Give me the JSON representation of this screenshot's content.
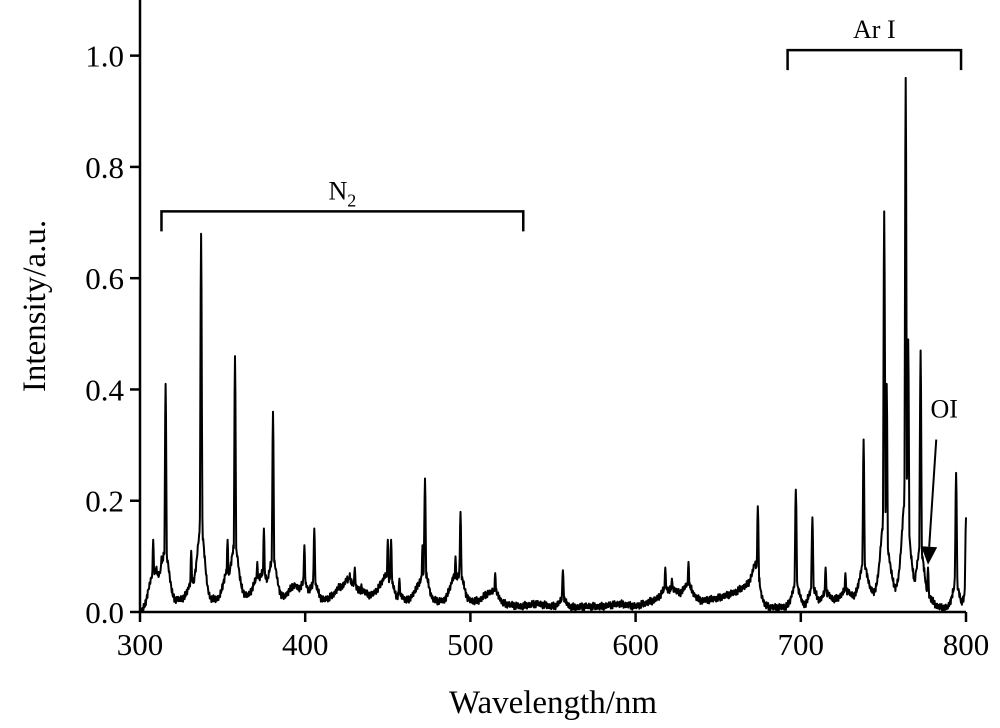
{
  "chart_data": {
    "type": "line",
    "xlabel": "Wavelength/nm",
    "ylabel": "Intensity/a.u.",
    "xlim": [
      300,
      800
    ],
    "ylim": [
      0,
      1.1
    ],
    "xticks": [
      300,
      400,
      500,
      600,
      700,
      800
    ],
    "yticks": [
      0.0,
      0.2,
      0.4,
      0.6,
      0.8,
      1.0
    ],
    "xtick_labels": [
      "300",
      "400",
      "500",
      "600",
      "700",
      "800"
    ],
    "ytick_labels": [
      "0.0",
      "0.2",
      "0.4",
      "0.6",
      "0.8",
      "1.0"
    ],
    "grid": false,
    "line_color": "#000000",
    "annotations": {
      "n2": {
        "label": "N",
        "subscript": "2",
        "x_start": 313,
        "x_end": 532,
        "y": 0.72
      },
      "ar": {
        "label": "Ar I",
        "x_start": 692,
        "x_end": 797,
        "y": 1.01
      },
      "oi": {
        "label": "OI",
        "arrow_from_x": 782,
        "arrow_from_y": 0.31,
        "arrow_to_x": 777,
        "arrow_to_y": 0.085
      }
    },
    "series": [
      {
        "baseline": [
          [
            300,
            0.0
          ],
          [
            303,
            0.01
          ],
          [
            305,
            0.03
          ],
          [
            310,
            0.06
          ],
          [
            316,
            0.03
          ],
          [
            320,
            0.02
          ],
          [
            328,
            0.025
          ],
          [
            333,
            0.04
          ],
          [
            340,
            0.02
          ],
          [
            348,
            0.025
          ],
          [
            352,
            0.05
          ],
          [
            360,
            0.03
          ],
          [
            366,
            0.03
          ],
          [
            372,
            0.05
          ],
          [
            380,
            0.03
          ],
          [
            386,
            0.025
          ],
          [
            392,
            0.04
          ],
          [
            400,
            0.03
          ],
          [
            410,
            0.02
          ],
          [
            418,
            0.03
          ],
          [
            425,
            0.05
          ],
          [
            432,
            0.03
          ],
          [
            440,
            0.03
          ],
          [
            448,
            0.05
          ],
          [
            455,
            0.02
          ],
          [
            462,
            0.02
          ],
          [
            468,
            0.04
          ],
          [
            476,
            0.02
          ],
          [
            484,
            0.02
          ],
          [
            490,
            0.05
          ],
          [
            498,
            0.02
          ],
          [
            505,
            0.02
          ],
          [
            512,
            0.03
          ],
          [
            520,
            0.015
          ],
          [
            530,
            0.01
          ],
          [
            540,
            0.015
          ],
          [
            550,
            0.01
          ],
          [
            560,
            0.008
          ],
          [
            570,
            0.01
          ],
          [
            580,
            0.01
          ],
          [
            590,
            0.015
          ],
          [
            600,
            0.01
          ],
          [
            610,
            0.02
          ],
          [
            620,
            0.03
          ],
          [
            630,
            0.035
          ],
          [
            640,
            0.02
          ],
          [
            650,
            0.025
          ],
          [
            660,
            0.035
          ],
          [
            668,
            0.05
          ],
          [
            672,
            0.065
          ],
          [
            676,
            0.01
          ],
          [
            685,
            0.008
          ],
          [
            695,
            0.01
          ],
          [
            705,
            0.01
          ],
          [
            715,
            0.02
          ],
          [
            725,
            0.025
          ],
          [
            735,
            0.03
          ],
          [
            745,
            0.035
          ],
          [
            755,
            0.04
          ],
          [
            765,
            0.04
          ],
          [
            772,
            0.03
          ],
          [
            778,
            0.015
          ],
          [
            785,
            0.008
          ],
          [
            792,
            0.005
          ],
          [
            800,
            0.0
          ]
        ],
        "peaks": [
          [
            308,
            0.13
          ],
          [
            313,
            0.1
          ],
          [
            315.5,
            0.41
          ],
          [
            331,
            0.11
          ],
          [
            337,
            0.68
          ],
          [
            353,
            0.13
          ],
          [
            357.5,
            0.46
          ],
          [
            371,
            0.09
          ],
          [
            375,
            0.15
          ],
          [
            380.5,
            0.36
          ],
          [
            394,
            0.05
          ],
          [
            399.5,
            0.12
          ],
          [
            405.5,
            0.15
          ],
          [
            420,
            0.04
          ],
          [
            427,
            0.07
          ],
          [
            430,
            0.08
          ],
          [
            434,
            0.05
          ],
          [
            448,
            0.06
          ],
          [
            450,
            0.13
          ],
          [
            452,
            0.13
          ],
          [
            457,
            0.06
          ],
          [
            471,
            0.12
          ],
          [
            472.5,
            0.24
          ],
          [
            491,
            0.1
          ],
          [
            494,
            0.18
          ],
          [
            510,
            0.03
          ],
          [
            515,
            0.07
          ],
          [
            556,
            0.075
          ],
          [
            618,
            0.08
          ],
          [
            622,
            0.06
          ],
          [
            632,
            0.09
          ],
          [
            674,
            0.19
          ],
          [
            697,
            0.22
          ],
          [
            707,
            0.17
          ],
          [
            715,
            0.08
          ],
          [
            727,
            0.07
          ],
          [
            738,
            0.31
          ],
          [
            750.5,
            0.72
          ],
          [
            752,
            0.41
          ],
          [
            763.5,
            0.96
          ],
          [
            765,
            0.49
          ],
          [
            772.5,
            0.47
          ],
          [
            777,
            0.08
          ],
          [
            794,
            0.25
          ],
          [
            800,
            0.17
          ]
        ]
      }
    ]
  }
}
